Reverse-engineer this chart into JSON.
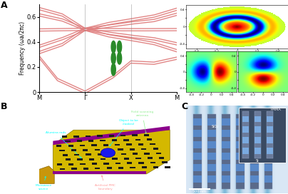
{
  "panel_labels": [
    "A",
    "B",
    "C"
  ],
  "band_ylabel": "Frequency (ωa/2πc)",
  "band_xticks": [
    "M",
    "Γ",
    "X",
    "M"
  ],
  "band_ylim": [
    0,
    0.7
  ],
  "band_yticks": [
    0,
    0.2,
    0.4,
    0.6
  ],
  "background_color": "#ffffff",
  "band_color": "#e08080",
  "band_linewidth": 1.0
}
